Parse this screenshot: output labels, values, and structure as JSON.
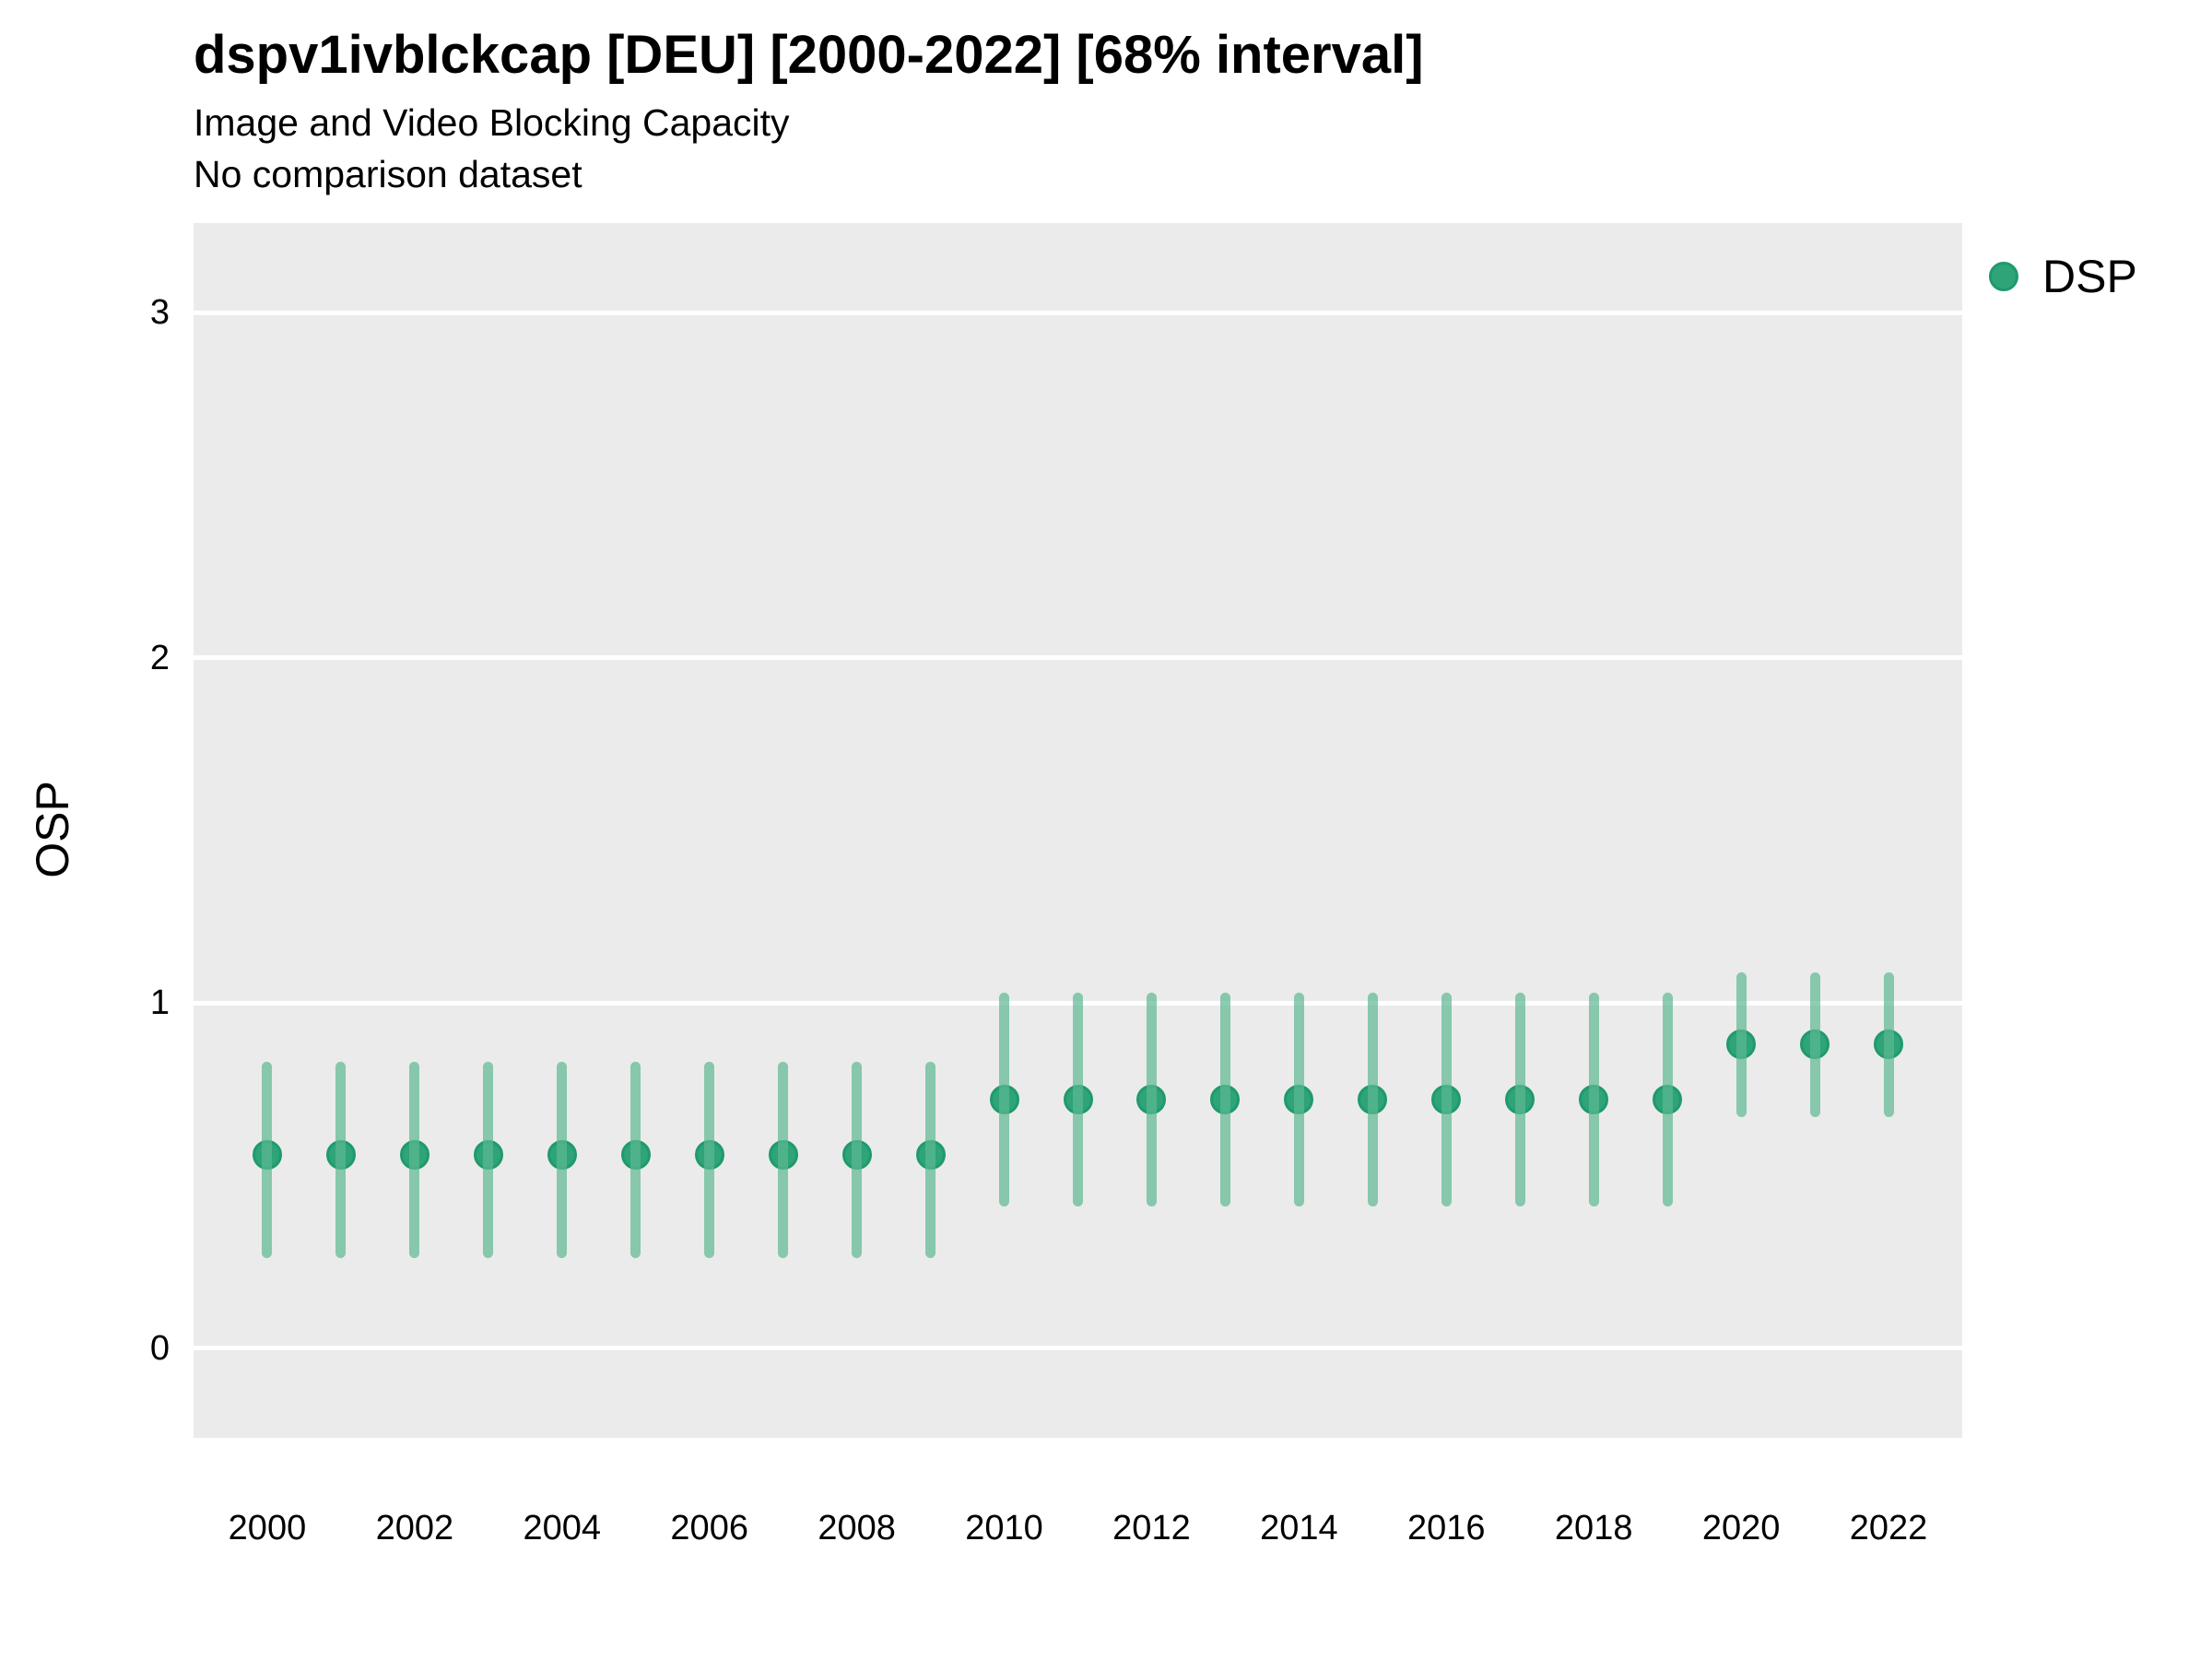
{
  "header": {
    "title": "dspv1ivblckcap [DEU] [2000-2022] [68% interval]",
    "subtitle": "Image and Video Blocking Capacity",
    "note": "No comparison dataset"
  },
  "legend": {
    "items": [
      {
        "label": "DSP",
        "color": "#2EA478",
        "stroke": "#1F9A6C"
      }
    ]
  },
  "chart_data": {
    "type": "scatter",
    "title": "dspv1ivblckcap [DEU] [2000-2022] [68% interval]",
    "subtitle": "Image and Video Blocking Capacity",
    "note": "No comparison dataset",
    "xlabel": "",
    "ylabel": "OSP",
    "interval_label": "68% interval",
    "series": [
      {
        "name": "DSP",
        "x": [
          2000,
          2001,
          2002,
          2003,
          2004,
          2005,
          2006,
          2007,
          2008,
          2009,
          2010,
          2011,
          2012,
          2013,
          2014,
          2015,
          2016,
          2017,
          2018,
          2019,
          2020,
          2021,
          2022
        ],
        "y": [
          0.56,
          0.56,
          0.56,
          0.56,
          0.56,
          0.56,
          0.56,
          0.56,
          0.56,
          0.56,
          0.72,
          0.72,
          0.72,
          0.72,
          0.72,
          0.72,
          0.72,
          0.72,
          0.72,
          0.72,
          0.88,
          0.88,
          0.88
        ],
        "y_lo": [
          0.26,
          0.26,
          0.26,
          0.26,
          0.26,
          0.26,
          0.26,
          0.26,
          0.26,
          0.26,
          0.41,
          0.41,
          0.41,
          0.41,
          0.41,
          0.41,
          0.41,
          0.41,
          0.41,
          0.41,
          0.67,
          0.67,
          0.67
        ],
        "y_hi": [
          0.83,
          0.83,
          0.83,
          0.83,
          0.83,
          0.83,
          0.83,
          0.83,
          0.83,
          0.83,
          1.03,
          1.03,
          1.03,
          1.03,
          1.03,
          1.03,
          1.03,
          1.03,
          1.03,
          1.03,
          1.09,
          1.09,
          1.09
        ]
      }
    ],
    "xlim": [
      1999,
      2023
    ],
    "ylim": [
      -0.26,
      3.26
    ],
    "xticks": [
      2000,
      2002,
      2004,
      2006,
      2008,
      2010,
      2012,
      2014,
      2016,
      2018,
      2020,
      2022
    ],
    "yticks": [
      0,
      1,
      2,
      3
    ],
    "grid": "horizontal-major-only",
    "legend_position": "right-top-outside",
    "colors": {
      "point_fill": "#2EA478",
      "point_stroke": "#1F9A6C",
      "interval_bar": "rgba(93,184,146,0.7)",
      "panel_background": "#EBEBEB",
      "gridline": "#FFFFFF",
      "text": "#000000"
    }
  }
}
